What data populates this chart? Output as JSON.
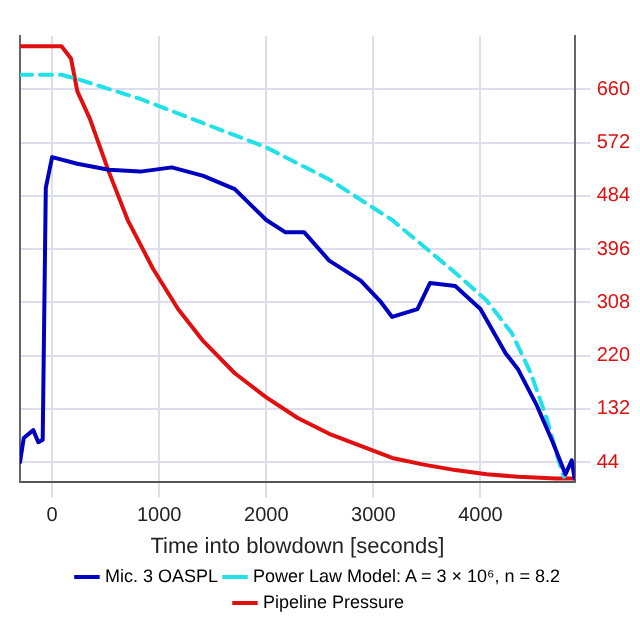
{
  "chart_data": {
    "type": "line",
    "xlabel": "Time into blowdown [seconds]",
    "xlim": [
      -300,
      4880
    ],
    "xticks": [
      0,
      1000,
      2000,
      3000,
      4000
    ],
    "ylim": [
      12,
      748
    ],
    "yticks": [
      44,
      132,
      220,
      308,
      396,
      484,
      572,
      660
    ],
    "grid": true,
    "legend": "bottom",
    "marker": "none",
    "series": [
      {
        "name": "Mic. 3 OASPL",
        "color": "#0000c0",
        "line_style": "solid",
        "x": [
          -300,
          -265,
          -176,
          -129,
          -88,
          -59,
          0,
          235,
          529,
          824,
          1118,
          1412,
          1706,
          2000,
          2176,
          2353,
          2588,
          2882,
          3059,
          3176,
          3412,
          3529,
          3765,
          4000,
          4235,
          4353,
          4529,
          4676,
          4794,
          4853,
          4880
        ],
        "values": [
          44,
          84,
          97,
          77,
          81,
          497,
          548,
          537,
          527,
          524,
          531,
          517,
          495,
          444,
          424,
          424,
          377,
          344,
          311,
          284,
          297,
          340,
          335,
          297,
          224,
          197,
          137,
          77,
          24,
          47,
          17
        ]
      },
      {
        "name": "Power Law Model: A = 3 × 10⁶, n = 8.2",
        "color": "#22e0e8",
        "line_style": "dashed",
        "x": [
          -300,
          88,
          235,
          824,
          1412,
          2000,
          2588,
          3176,
          3765,
          4059,
          4294,
          4471,
          4618,
          4735,
          4780
        ],
        "values": [
          684,
          684,
          677,
          644,
          604,
          564,
          511,
          444,
          357,
          311,
          257,
          191,
          117,
          44,
          20
        ]
      },
      {
        "name": "Pipeline Pressure",
        "color": "#e01010",
        "line_style": "solid",
        "x": [
          -300,
          88,
          176,
          235,
          353,
          529,
          706,
          941,
          1176,
          1412,
          1706,
          2000,
          2294,
          2588,
          2882,
          3176,
          3471,
          3765,
          4059,
          4353,
          4706,
          4880
        ],
        "values": [
          731,
          731,
          711,
          657,
          611,
          524,
          444,
          364,
          297,
          244,
          191,
          151,
          117,
          91,
          71,
          51,
          40,
          31,
          24,
          20,
          17,
          17
        ]
      }
    ]
  }
}
